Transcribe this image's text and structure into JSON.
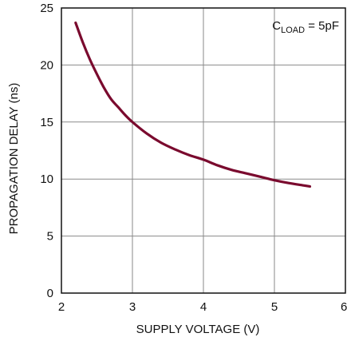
{
  "colors": {
    "curve": "#7a0a2e",
    "grid": "#8a8a8a",
    "frame": "#111111"
  },
  "chart_data": {
    "type": "line",
    "xlabel": "SUPPLY VOLTAGE (V)",
    "ylabel": "PROPAGATION DELAY (ns)",
    "xlim": [
      2,
      6
    ],
    "ylim": [
      0,
      25
    ],
    "xticks": [
      "2",
      "3",
      "4",
      "5",
      "6"
    ],
    "yticks": [
      "0",
      "5",
      "10",
      "15",
      "20",
      "25"
    ],
    "grid": true,
    "annotation": {
      "main": "C",
      "sub": "LOAD",
      "rest": " = 5pF"
    },
    "series": [
      {
        "x": [
          2.2,
          2.3,
          2.4,
          2.5,
          2.6,
          2.7,
          2.8,
          2.9,
          3.0,
          3.2,
          3.4,
          3.6,
          3.8,
          4.0,
          4.2,
          4.4,
          4.6,
          4.8,
          5.0,
          5.2,
          5.4,
          5.5
        ],
        "y": [
          23.7,
          22.0,
          20.5,
          19.2,
          18.0,
          17.0,
          16.3,
          15.6,
          15.0,
          14.0,
          13.2,
          12.6,
          12.1,
          11.7,
          11.2,
          10.8,
          10.5,
          10.2,
          9.9,
          9.65,
          9.45,
          9.35
        ]
      }
    ]
  }
}
